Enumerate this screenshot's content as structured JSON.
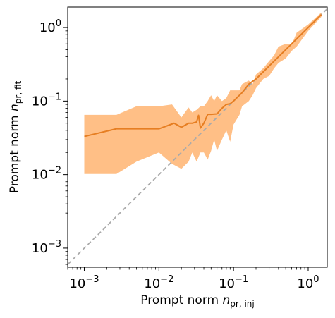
{
  "chart_data": {
    "type": "line",
    "xscale": "log",
    "yscale": "log",
    "xlim": [
      0.0006,
      1.8
    ],
    "ylim": [
      0.00055,
      1.9
    ],
    "xlabel": {
      "base": "Prompt norm ",
      "sym": "n",
      "sub": "pr, inj"
    },
    "ylabel": {
      "base": "Prompt norm ",
      "sym": "n",
      "sub": "pr, fit"
    },
    "x_ticks": [
      {
        "value": 0.001,
        "base": "10",
        "exp": "−3"
      },
      {
        "value": 0.01,
        "base": "10",
        "exp": "−2"
      },
      {
        "value": 0.1,
        "base": "10",
        "exp": "−1"
      },
      {
        "value": 1,
        "base": "10",
        "exp": "0"
      }
    ],
    "y_ticks": [
      {
        "value": 0.001,
        "base": "10",
        "exp": "−3"
      },
      {
        "value": 0.01,
        "base": "10",
        "exp": "−2"
      },
      {
        "value": 0.1,
        "base": "10",
        "exp": "−1"
      },
      {
        "value": 1,
        "base": "10",
        "exp": "0"
      }
    ],
    "grid": false,
    "legend": "none",
    "colors": {
      "line": "#e67e22",
      "band": "#ffbf86",
      "identity": "#aaaaaa"
    },
    "identity_line": {
      "style": "dashed",
      "x": [
        0.0006,
        1.8
      ],
      "y": [
        0.0006,
        1.8
      ]
    },
    "median": {
      "x": [
        0.001,
        0.0027,
        0.005,
        0.01,
        0.016,
        0.02,
        0.025,
        0.028,
        0.032,
        0.034,
        0.036,
        0.04,
        0.045,
        0.05,
        0.06,
        0.07,
        0.08,
        0.09,
        0.1,
        0.13,
        0.16,
        0.2,
        0.25,
        0.3,
        0.4,
        0.5,
        0.7,
        1.0,
        1.5
      ],
      "y": [
        0.033,
        0.042,
        0.042,
        0.042,
        0.05,
        0.044,
        0.05,
        0.05,
        0.052,
        0.064,
        0.043,
        0.05,
        0.066,
        0.066,
        0.067,
        0.08,
        0.09,
        0.092,
        0.1,
        0.13,
        0.17,
        0.2,
        0.25,
        0.3,
        0.4,
        0.5,
        0.7,
        1.0,
        1.5
      ]
    },
    "band": {
      "x": [
        0.001,
        0.0027,
        0.005,
        0.01,
        0.015,
        0.02,
        0.025,
        0.028,
        0.032,
        0.036,
        0.04,
        0.045,
        0.05,
        0.055,
        0.06,
        0.07,
        0.08,
        0.09,
        0.1,
        0.12,
        0.13,
        0.16,
        0.18,
        0.2,
        0.25,
        0.3,
        0.35,
        0.4,
        0.5,
        0.6,
        0.7,
        1.0,
        1.5
      ],
      "upper": [
        0.065,
        0.065,
        0.085,
        0.085,
        0.09,
        0.06,
        0.082,
        0.07,
        0.076,
        0.085,
        0.085,
        0.1,
        0.12,
        0.1,
        0.12,
        0.1,
        0.11,
        0.14,
        0.14,
        0.14,
        0.17,
        0.19,
        0.17,
        0.23,
        0.28,
        0.35,
        0.42,
        0.55,
        0.6,
        0.58,
        0.85,
        1.1,
        1.6
      ],
      "lower": [
        0.0102,
        0.0102,
        0.015,
        0.02,
        0.014,
        0.012,
        0.015,
        0.02,
        0.015,
        0.02,
        0.02,
        0.016,
        0.021,
        0.03,
        0.021,
        0.03,
        0.04,
        0.028,
        0.048,
        0.065,
        0.085,
        0.1,
        0.12,
        0.15,
        0.2,
        0.22,
        0.28,
        0.33,
        0.38,
        0.48,
        0.55,
        0.9,
        1.4
      ]
    }
  }
}
